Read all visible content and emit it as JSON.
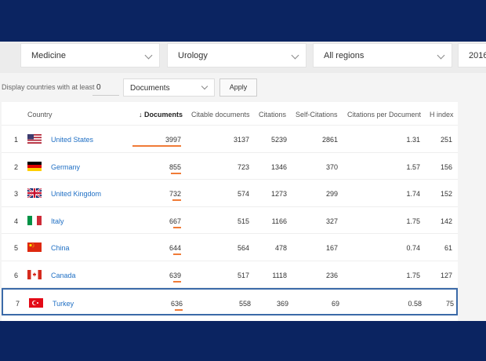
{
  "filters": {
    "subject_area": "Medicine",
    "subject_category": "Urology",
    "region": "All regions",
    "year": "2016"
  },
  "threshold": {
    "label": "Display countries with at least",
    "value": "0",
    "metric": "Documents",
    "apply_label": "Apply"
  },
  "table": {
    "headers": {
      "country": "Country",
      "documents": "↓ Documents",
      "citable": "Citable documents",
      "citations": "Citations",
      "self_citations": "Self-Citations",
      "cpd": "Citations per Document",
      "h_index": "H index"
    },
    "rows": [
      {
        "rank": "1",
        "country": "United States",
        "flag": "us",
        "documents": "3997",
        "doc_fraction": 1.0,
        "citable": "3137",
        "citations": "5239",
        "self_citations": "2861",
        "cpd": "1.31",
        "h_index": "251"
      },
      {
        "rank": "2",
        "country": "Germany",
        "flag": "de",
        "documents": "855",
        "doc_fraction": 0.214,
        "citable": "723",
        "citations": "1346",
        "self_citations": "370",
        "cpd": "1.57",
        "h_index": "156"
      },
      {
        "rank": "3",
        "country": "United Kingdom",
        "flag": "gb",
        "documents": "732",
        "doc_fraction": 0.183,
        "citable": "574",
        "citations": "1273",
        "self_citations": "299",
        "cpd": "1.74",
        "h_index": "152"
      },
      {
        "rank": "4",
        "country": "Italy",
        "flag": "it",
        "documents": "667",
        "doc_fraction": 0.167,
        "citable": "515",
        "citations": "1166",
        "self_citations": "327",
        "cpd": "1.75",
        "h_index": "142"
      },
      {
        "rank": "5",
        "country": "China",
        "flag": "cn",
        "documents": "644",
        "doc_fraction": 0.161,
        "citable": "564",
        "citations": "478",
        "self_citations": "167",
        "cpd": "0.74",
        "h_index": "61"
      },
      {
        "rank": "6",
        "country": "Canada",
        "flag": "ca",
        "documents": "639",
        "doc_fraction": 0.16,
        "citable": "517",
        "citations": "1118",
        "self_citations": "236",
        "cpd": "1.75",
        "h_index": "127"
      },
      {
        "rank": "7",
        "country": "Turkey",
        "flag": "tr",
        "documents": "636",
        "doc_fraction": 0.159,
        "citable": "558",
        "citations": "369",
        "self_citations": "69",
        "cpd": "0.58",
        "h_index": "75",
        "highlighted": true
      }
    ]
  },
  "colors": {
    "background": "#0b2461",
    "bar": "#f07b37",
    "link": "#1f6fc4",
    "highlight_border": "#3b6aa8"
  }
}
